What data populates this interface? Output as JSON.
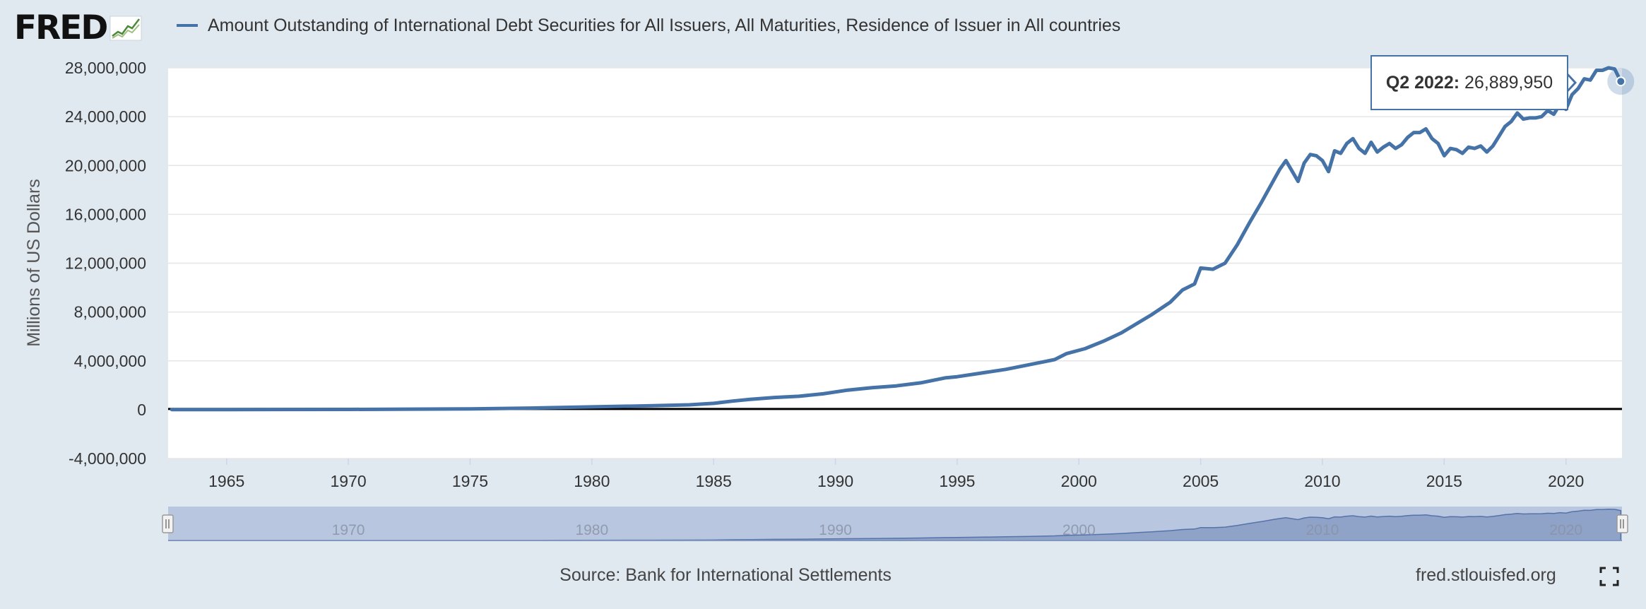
{
  "header": {
    "logo_text": "FRED",
    "legend_label": "Amount Outstanding of International Debt Securities for All Issuers, All Maturities, Residence of Issuer in All countries"
  },
  "tooltip": {
    "period": "Q2 2022:",
    "value": "26,889,950"
  },
  "footer": {
    "source": "Source: Bank for International Settlements",
    "url": "fred.stlouisfed.org"
  },
  "colors": {
    "series": "#4572a7",
    "navigator_fill": "#8fa3c9",
    "navigator_bg": "#b9c6e0",
    "background": "#e1e9f0"
  },
  "icons": {
    "logo_graph": "line-graph-icon",
    "fullscreen": "fullscreen-icon"
  },
  "chart_data": {
    "type": "line",
    "title": "",
    "xlabel": "",
    "ylabel": "Millions of US Dollars",
    "xlim": [
      1962.6,
      2022.3
    ],
    "ylim": [
      -4000000,
      28000000
    ],
    "y_ticks": [
      -4000000,
      0,
      4000000,
      8000000,
      12000000,
      16000000,
      20000000,
      24000000,
      28000000
    ],
    "y_tick_labels": [
      "-4,000,000",
      "0",
      "4,000,000",
      "8,000,000",
      "12,000,000",
      "16,000,000",
      "20,000,000",
      "24,000,000",
      "28,000,000"
    ],
    "x_ticks": [
      1965,
      1970,
      1975,
      1980,
      1985,
      1990,
      1995,
      2000,
      2005,
      2010,
      2015,
      2020
    ],
    "x_tick_labels": [
      "1965",
      "1970",
      "1975",
      "1980",
      "1985",
      "1990",
      "1995",
      "2000",
      "2005",
      "2010",
      "2015",
      "2020"
    ],
    "navigator_ticks": [
      1970,
      1980,
      1990,
      2000,
      2010,
      2020
    ],
    "navigator_tick_labels": [
      "1970",
      "1980",
      "1990",
      "2000",
      "2010",
      "2020"
    ],
    "grid": true,
    "legend": "top-left",
    "series": [
      {
        "name": "Amount Outstanding of International Debt Securities for All Issuers, All Maturities, Residence of Issuer in All countries",
        "x": [
          1962.75,
          1965,
          1970,
          1975,
          1977.5,
          1980,
          1982.5,
          1984,
          1985,
          1985.75,
          1986.5,
          1987.5,
          1988.5,
          1989.5,
          1990.5,
          1991.5,
          1992.5,
          1993.5,
          1994.5,
          1995,
          1996,
          1997,
          1998,
          1999,
          1999.5,
          2000.25,
          2001,
          2001.75,
          2002.5,
          2003,
          2003.75,
          2004.25,
          2004.75,
          2005,
          2005.5,
          2006,
          2006.5,
          2007,
          2007.5,
          2008,
          2008.25,
          2008.5,
          2009,
          2009.25,
          2009.5,
          2009.75,
          2010,
          2010.25,
          2010.5,
          2010.75,
          2011,
          2011.25,
          2011.5,
          2011.75,
          2012,
          2012.25,
          2012.5,
          2012.75,
          2013,
          2013.25,
          2013.5,
          2013.75,
          2014,
          2014.25,
          2014.5,
          2014.75,
          2015,
          2015.25,
          2015.5,
          2015.75,
          2016,
          2016.25,
          2016.5,
          2016.75,
          2017,
          2017.25,
          2017.5,
          2017.75,
          2018,
          2018.25,
          2018.5,
          2018.75,
          2019,
          2019.25,
          2019.5,
          2019.75,
          2020,
          2020.25,
          2020.5,
          2020.75,
          2021,
          2021.25,
          2021.5,
          2021.75,
          2022,
          2022.25
        ],
        "values": [
          10000,
          10000,
          20000,
          60000,
          130000,
          230000,
          320000,
          400000,
          520000,
          700000,
          850000,
          1000000,
          1100000,
          1300000,
          1600000,
          1800000,
          1950000,
          2200000,
          2600000,
          2700000,
          3000000,
          3300000,
          3700000,
          4100000,
          4600000,
          5000000,
          5600000,
          6300000,
          7200000,
          7800000,
          8800000,
          9800000,
          10300000,
          11600000,
          11500000,
          12000000,
          13500000,
          15300000,
          17000000,
          18800000,
          19700000,
          20400000,
          18700000,
          20200000,
          20900000,
          20800000,
          20400000,
          19500000,
          21200000,
          21000000,
          21800000,
          22200000,
          21400000,
          21000000,
          21900000,
          21100000,
          21500000,
          21800000,
          21400000,
          21700000,
          22300000,
          22700000,
          22700000,
          23000000,
          22200000,
          21800000,
          20800000,
          21400000,
          21300000,
          21000000,
          21500000,
          21400000,
          21600000,
          21100000,
          21600000,
          22400000,
          23200000,
          23600000,
          24300000,
          23800000,
          23900000,
          23900000,
          24000000,
          24500000,
          24200000,
          25000000,
          24600000,
          25800000,
          26300000,
          27100000,
          27000000,
          27800000,
          27800000,
          28000000,
          27900000,
          26889950
        ]
      }
    ]
  }
}
